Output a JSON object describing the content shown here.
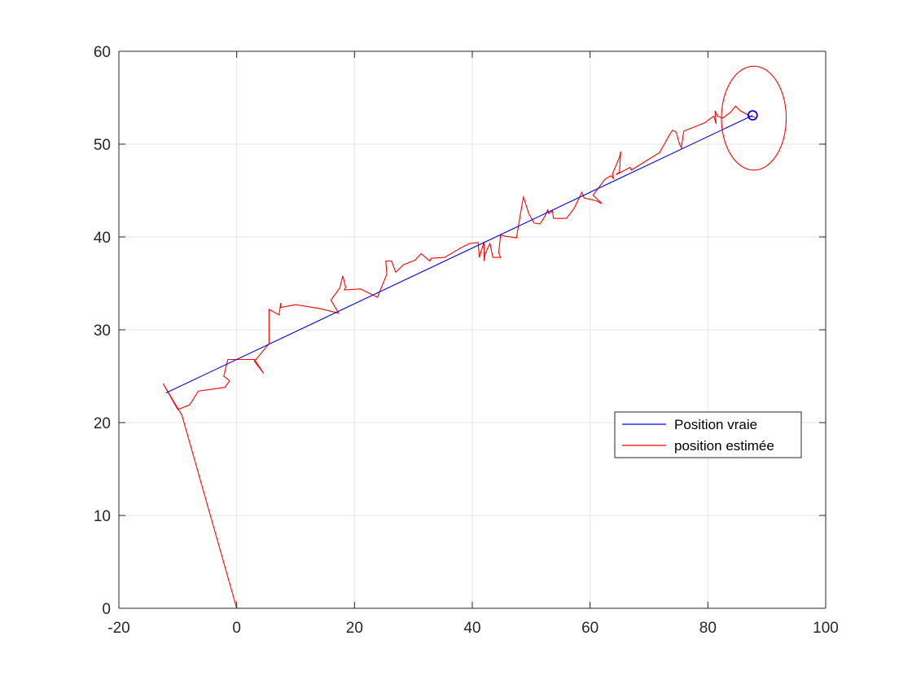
{
  "chart_data": {
    "type": "line",
    "title": "",
    "xlabel": "",
    "ylabel": "",
    "xlim": [
      -20,
      100
    ],
    "ylim": [
      0,
      60
    ],
    "xticks": [
      -20,
      0,
      20,
      40,
      60,
      80,
      100
    ],
    "yticks": [
      0,
      10,
      20,
      30,
      40,
      50,
      60
    ],
    "xtick_labels": [
      "-20",
      "0",
      "20",
      "40",
      "60",
      "80",
      "100"
    ],
    "ytick_labels": [
      "0",
      "10",
      "20",
      "30",
      "40",
      "50",
      "60"
    ],
    "grid": true,
    "legend": {
      "placement": "right-center",
      "entries": [
        "Position vraie",
        "position estimée"
      ]
    },
    "series": [
      {
        "name": "Position vraie",
        "color": "#0000ff",
        "points": [
          [
            -12.0,
            23.2
          ],
          [
            87.6,
            53.1
          ]
        ]
      },
      {
        "name": "position estimée",
        "color": "#ff0000",
        "points": [
          [
            0.0,
            0.0
          ],
          [
            -9.3,
            20.8
          ],
          [
            -12.5,
            24.2
          ],
          [
            -10.0,
            21.4
          ],
          [
            -8.0,
            21.9
          ],
          [
            -6.5,
            23.4
          ],
          [
            -2.0,
            23.8
          ],
          [
            -1.2,
            24.5
          ],
          [
            -2.2,
            25.0
          ],
          [
            -1.5,
            26.8
          ],
          [
            3.0,
            26.8
          ],
          [
            4.6,
            25.3
          ],
          [
            3.0,
            26.6
          ],
          [
            5.5,
            28.5
          ],
          [
            5.5,
            32.2
          ],
          [
            7.2,
            31.6
          ],
          [
            7.5,
            32.9
          ],
          [
            7.5,
            32.4
          ],
          [
            10.0,
            32.7
          ],
          [
            14.0,
            32.3
          ],
          [
            17.3,
            31.8
          ],
          [
            16.0,
            33.2
          ],
          [
            17.5,
            34.5
          ],
          [
            18.0,
            35.8
          ],
          [
            18.5,
            34.6
          ],
          [
            18.3,
            34.3
          ],
          [
            21.0,
            34.4
          ],
          [
            23.9,
            33.5
          ],
          [
            25.5,
            36.0
          ],
          [
            25.3,
            37.4
          ],
          [
            26.3,
            37.4
          ],
          [
            27.0,
            36.2
          ],
          [
            28.3,
            37.0
          ],
          [
            30.3,
            37.5
          ],
          [
            31.3,
            38.2
          ],
          [
            32.8,
            37.4
          ],
          [
            33.0,
            37.7
          ],
          [
            35.3,
            37.8
          ],
          [
            38.0,
            38.8
          ],
          [
            39.5,
            39.3
          ],
          [
            41.0,
            39.4
          ],
          [
            41.2,
            37.8
          ],
          [
            42.0,
            39.5
          ],
          [
            42.0,
            37.4
          ],
          [
            42.2,
            38.2
          ],
          [
            43.0,
            39.3
          ],
          [
            43.5,
            37.8
          ],
          [
            44.8,
            37.8
          ],
          [
            44.5,
            38.3
          ],
          [
            44.8,
            40.2
          ],
          [
            45.5,
            40.1
          ],
          [
            47.5,
            39.9
          ],
          [
            48.5,
            43.7
          ],
          [
            48.7,
            44.3
          ],
          [
            49.6,
            42.5
          ],
          [
            50.5,
            41.5
          ],
          [
            51.5,
            41.4
          ],
          [
            52.3,
            42.2
          ],
          [
            52.8,
            42.9
          ],
          [
            53.0,
            42.5
          ],
          [
            53.6,
            42.8
          ],
          [
            53.8,
            42.0
          ],
          [
            56.0,
            42.0
          ],
          [
            57.3,
            43.1
          ],
          [
            58.0,
            44.0
          ],
          [
            58.6,
            44.8
          ],
          [
            59.0,
            44.2
          ],
          [
            61.0,
            43.9
          ],
          [
            62.0,
            43.6
          ],
          [
            60.5,
            44.5
          ],
          [
            62.5,
            46.2
          ],
          [
            63.5,
            46.6
          ],
          [
            64.0,
            46.3
          ],
          [
            63.8,
            46.8
          ],
          [
            65.0,
            48.6
          ],
          [
            65.2,
            49.2
          ],
          [
            65.0,
            47.0
          ],
          [
            64.4,
            46.7
          ],
          [
            66.8,
            47.5
          ],
          [
            67.0,
            47.2
          ],
          [
            71.8,
            49.1
          ],
          [
            73.5,
            51.0
          ],
          [
            74.0,
            51.5
          ],
          [
            74.6,
            51.3
          ],
          [
            75.2,
            50.0
          ],
          [
            75.5,
            49.6
          ],
          [
            75.8,
            51.0
          ],
          [
            75.9,
            51.4
          ],
          [
            79.5,
            52.3
          ],
          [
            80.5,
            52.8
          ],
          [
            81.0,
            53.0
          ],
          [
            81.4,
            52.2
          ],
          [
            81.2,
            53.6
          ],
          [
            81.7,
            53.0
          ],
          [
            82.5,
            52.8
          ],
          [
            83.8,
            53.4
          ],
          [
            84.7,
            54.1
          ],
          [
            85.5,
            53.6
          ],
          [
            87.2,
            53.0
          ],
          [
            88.0,
            52.9
          ]
        ]
      }
    ],
    "markers": [
      {
        "type": "circle",
        "x": 87.6,
        "y": 53.1,
        "color": "#0000ff"
      }
    ],
    "ellipses": [
      {
        "cx": 87.8,
        "cy": 52.8,
        "rx": 5.5,
        "ry": 5.6,
        "color": "#ff0000"
      }
    ]
  }
}
